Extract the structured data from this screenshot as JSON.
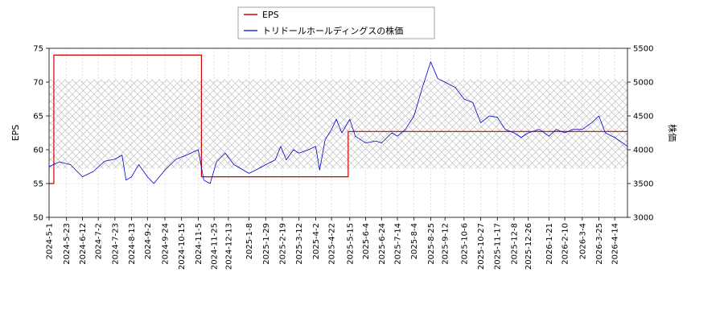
{
  "chart_data": {
    "type": "line",
    "ylabel_left": "EPS",
    "ylabel_right": "株価",
    "ylim_left": [
      50,
      75
    ],
    "ylim_right": [
      3000,
      5500
    ],
    "yticks_left": [
      "50",
      "55",
      "60",
      "65",
      "70",
      "75"
    ],
    "yticks_right": [
      "3000",
      "3500",
      "4000",
      "4500",
      "5000",
      "5500"
    ],
    "xticks": [
      "2024-5-1",
      "2024-5-23",
      "2024-6-12",
      "2024-7-2",
      "2024-7-23",
      "2024-8-13",
      "2024-9-2",
      "2024-9-24",
      "2024-10-15",
      "2024-11-5",
      "2024-11-25",
      "2024-12-13",
      "2025-1-8",
      "2025-1-29",
      "2025-2-19",
      "2025-3-12",
      "2025-4-2",
      "2025-4-22",
      "2025-5-15",
      "2025-6-4",
      "2025-6-24",
      "2025-7-14",
      "2025-8-4",
      "2025-8-25",
      "2025-9-12",
      "2025-10-6",
      "2025-10-27",
      "2025-11-17",
      "2025-12-8",
      "2025-12-26",
      "2026-1-21",
      "2026-2-10",
      "2026-3-4",
      "2026-3-25",
      "2026-4-14"
    ],
    "grid": true,
    "legend_position": "top-center",
    "shaded_band_right_axis": [
      3720,
      5040
    ],
    "series": [
      {
        "name": "EPS",
        "axis": "left",
        "color": "#cc0000",
        "step": true,
        "points": [
          [
            "2024-5-1",
            55.0
          ],
          [
            "2024-5-7",
            55.0
          ],
          [
            "2024-5-7",
            74.0
          ],
          [
            "2024-11-9",
            74.0
          ],
          [
            "2024-11-9",
            56.0
          ],
          [
            "2025-5-13",
            56.0
          ],
          [
            "2025-5-13",
            62.7
          ],
          [
            "2026-4-30",
            62.7
          ]
        ]
      },
      {
        "name": "トリドールホールディングスの株価",
        "axis": "right",
        "color": "#0000cc",
        "points": [
          [
            "2024-5-1",
            3750
          ],
          [
            "2024-5-14",
            3820
          ],
          [
            "2024-5-28",
            3780
          ],
          [
            "2024-6-12",
            3600
          ],
          [
            "2024-6-26",
            3680
          ],
          [
            "2024-7-10",
            3830
          ],
          [
            "2024-7-23",
            3860
          ],
          [
            "2024-8-1",
            3920
          ],
          [
            "2024-8-6",
            3550
          ],
          [
            "2024-8-13",
            3600
          ],
          [
            "2024-8-22",
            3780
          ],
          [
            "2024-9-2",
            3600
          ],
          [
            "2024-9-10",
            3500
          ],
          [
            "2024-9-24",
            3700
          ],
          [
            "2024-10-8",
            3860
          ],
          [
            "2024-10-21",
            3920
          ],
          [
            "2024-11-5",
            4000
          ],
          [
            "2024-11-12",
            3550
          ],
          [
            "2024-11-20",
            3500
          ],
          [
            "2024-11-28",
            3820
          ],
          [
            "2024-12-9",
            3950
          ],
          [
            "2024-12-20",
            3780
          ],
          [
            "2025-1-8",
            3650
          ],
          [
            "2025-1-20",
            3720
          ],
          [
            "2025-1-29",
            3780
          ],
          [
            "2025-2-10",
            3850
          ],
          [
            "2025-2-17",
            4050
          ],
          [
            "2025-2-24",
            3850
          ],
          [
            "2025-3-5",
            4000
          ],
          [
            "2025-3-12",
            3950
          ],
          [
            "2025-3-24",
            4000
          ],
          [
            "2025-4-2",
            4050
          ],
          [
            "2025-4-7",
            3700
          ],
          [
            "2025-4-14",
            4150
          ],
          [
            "2025-4-22",
            4300
          ],
          [
            "2025-4-28",
            4450
          ],
          [
            "2025-5-5",
            4250
          ],
          [
            "2025-5-15",
            4450
          ],
          [
            "2025-5-22",
            4200
          ],
          [
            "2025-6-4",
            4100
          ],
          [
            "2025-6-17",
            4130
          ],
          [
            "2025-6-24",
            4100
          ],
          [
            "2025-7-7",
            4250
          ],
          [
            "2025-7-14",
            4200
          ],
          [
            "2025-7-24",
            4300
          ],
          [
            "2025-8-4",
            4500
          ],
          [
            "2025-8-14",
            4900
          ],
          [
            "2025-8-25",
            5300
          ],
          [
            "2025-9-3",
            5050
          ],
          [
            "2025-9-12",
            5000
          ],
          [
            "2025-9-25",
            4920
          ],
          [
            "2025-10-6",
            4750
          ],
          [
            "2025-10-17",
            4700
          ],
          [
            "2025-10-27",
            4400
          ],
          [
            "2025-11-7",
            4500
          ],
          [
            "2025-11-17",
            4480
          ],
          [
            "2025-11-27",
            4300
          ],
          [
            "2025-12-8",
            4250
          ],
          [
            "2025-12-17",
            4180
          ],
          [
            "2025-12-26",
            4250
          ],
          [
            "2026-1-9",
            4300
          ],
          [
            "2026-1-21",
            4200
          ],
          [
            "2026-1-30",
            4300
          ],
          [
            "2026-2-10",
            4250
          ],
          [
            "2026-2-20",
            4300
          ],
          [
            "2026-3-4",
            4300
          ],
          [
            "2026-3-16",
            4400
          ],
          [
            "2026-3-25",
            4500
          ],
          [
            "2026-4-2",
            4250
          ],
          [
            "2026-4-14",
            4180
          ],
          [
            "2026-4-24",
            4100
          ],
          [
            "2026-4-30",
            4050
          ]
        ]
      }
    ]
  }
}
